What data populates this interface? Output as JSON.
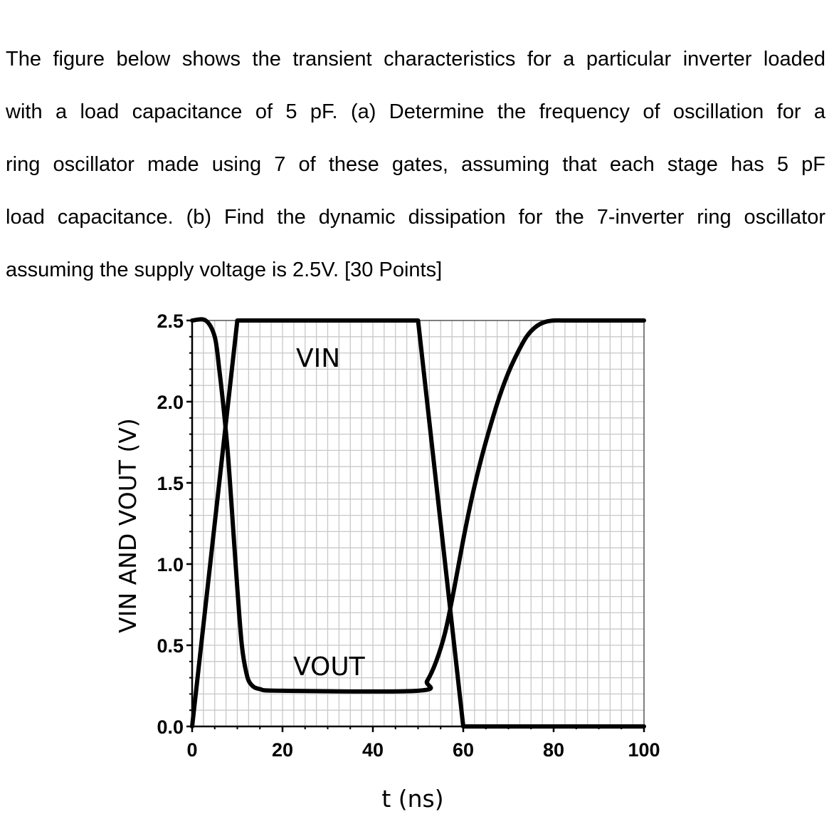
{
  "problem": {
    "lines": [
      "The figure below shows the transient characteristics for a particular inverter loaded",
      "with a load capacitance of 5 pF. (a) Determine the frequency of oscillation for a",
      "ring oscillator made using 7 of these gates, assuming that each stage has 5 pF",
      "load capacitance. (b) Find the dynamic dissipation for the 7-inverter ring oscillator",
      "assuming the supply voltage is 2.5V. [30 Points]"
    ]
  },
  "chart_data": {
    "type": "line",
    "xlabel": "t (ns)",
    "ylabel": "VIN AND VOUT (V)",
    "xlim": [
      0,
      100
    ],
    "ylim": [
      0,
      2.5
    ],
    "xticks": [
      "0",
      "20",
      "40",
      "60",
      "80",
      "100"
    ],
    "yticks": [
      "0.0",
      "0.5",
      "1.0",
      "1.5",
      "2.0",
      "2.5"
    ],
    "grid": true,
    "series": [
      {
        "name": "VIN",
        "x": [
          0,
          10,
          50,
          60,
          100
        ],
        "y": [
          0,
          2.5,
          2.5,
          0,
          0
        ]
      },
      {
        "name": "VOUT",
        "x": [
          0,
          3,
          5,
          6,
          7,
          8,
          9,
          10,
          11,
          12,
          13,
          15,
          20,
          50,
          52,
          54,
          56,
          58,
          60,
          62,
          64,
          66,
          68,
          70,
          72,
          74,
          76,
          78,
          80,
          82,
          84,
          100
        ],
        "y": [
          2.5,
          2.5,
          2.4,
          2.2,
          1.95,
          1.65,
          1.25,
          0.85,
          0.5,
          0.33,
          0.26,
          0.23,
          0.22,
          0.22,
          0.28,
          0.4,
          0.58,
          0.85,
          1.15,
          1.42,
          1.65,
          1.85,
          2.03,
          2.18,
          2.3,
          2.4,
          2.46,
          2.49,
          2.5,
          2.5,
          2.5,
          2.5
        ]
      }
    ],
    "annotations": [
      "VIN",
      "VOUT"
    ]
  }
}
